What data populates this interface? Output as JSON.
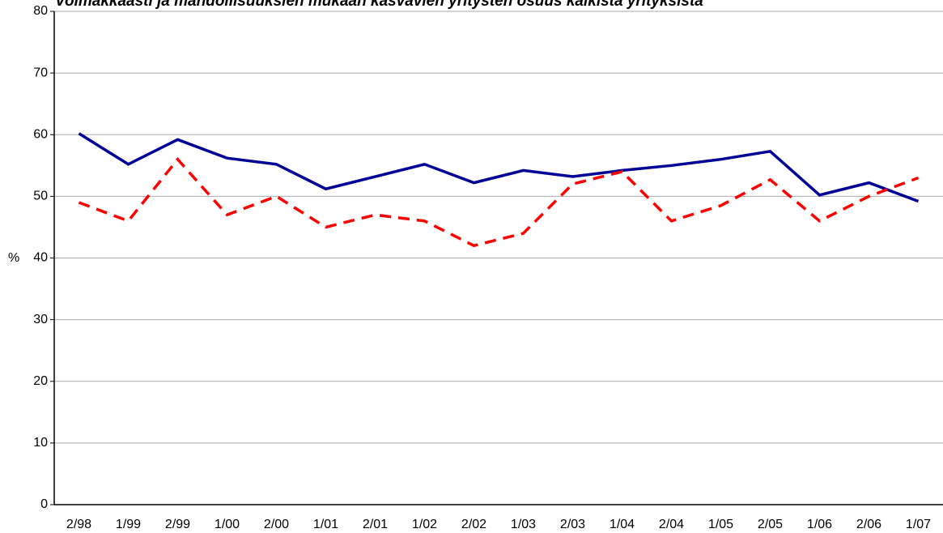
{
  "chart_data": {
    "type": "line",
    "title": "Voimakkaasti ja mahdollisuuksien mukaan kasvavien yritysten osuus kaikista yrityksistä",
    "y_label": "%",
    "categories": [
      "2/98",
      "1/99",
      "2/99",
      "1/00",
      "2/00",
      "1/01",
      "2/01",
      "1/02",
      "2/02",
      "1/03",
      "2/03",
      "1/04",
      "2/04",
      "1/05",
      "2/05",
      "1/06",
      "2/06",
      "1/07"
    ],
    "series": [
      {
        "color": "#000099",
        "dash": false,
        "values": [
          60.2,
          55.2,
          59.2,
          56.2,
          55.2,
          51.2,
          53.2,
          55.2,
          52.2,
          54.2,
          53.2,
          54.2,
          55.0,
          56.0,
          57.3,
          50.2,
          52.2,
          49.2
        ]
      },
      {
        "color": "#ff0000",
        "dash": true,
        "values": [
          49,
          46,
          56,
          47,
          50,
          45,
          47,
          46,
          42,
          44,
          52,
          54,
          46,
          48.5,
          52.7,
          46,
          50,
          53
        ]
      }
    ],
    "ylim": [
      0,
      80
    ],
    "yticks": [
      0,
      10,
      20,
      30,
      40,
      50,
      60,
      70,
      80
    ],
    "grid": true
  }
}
